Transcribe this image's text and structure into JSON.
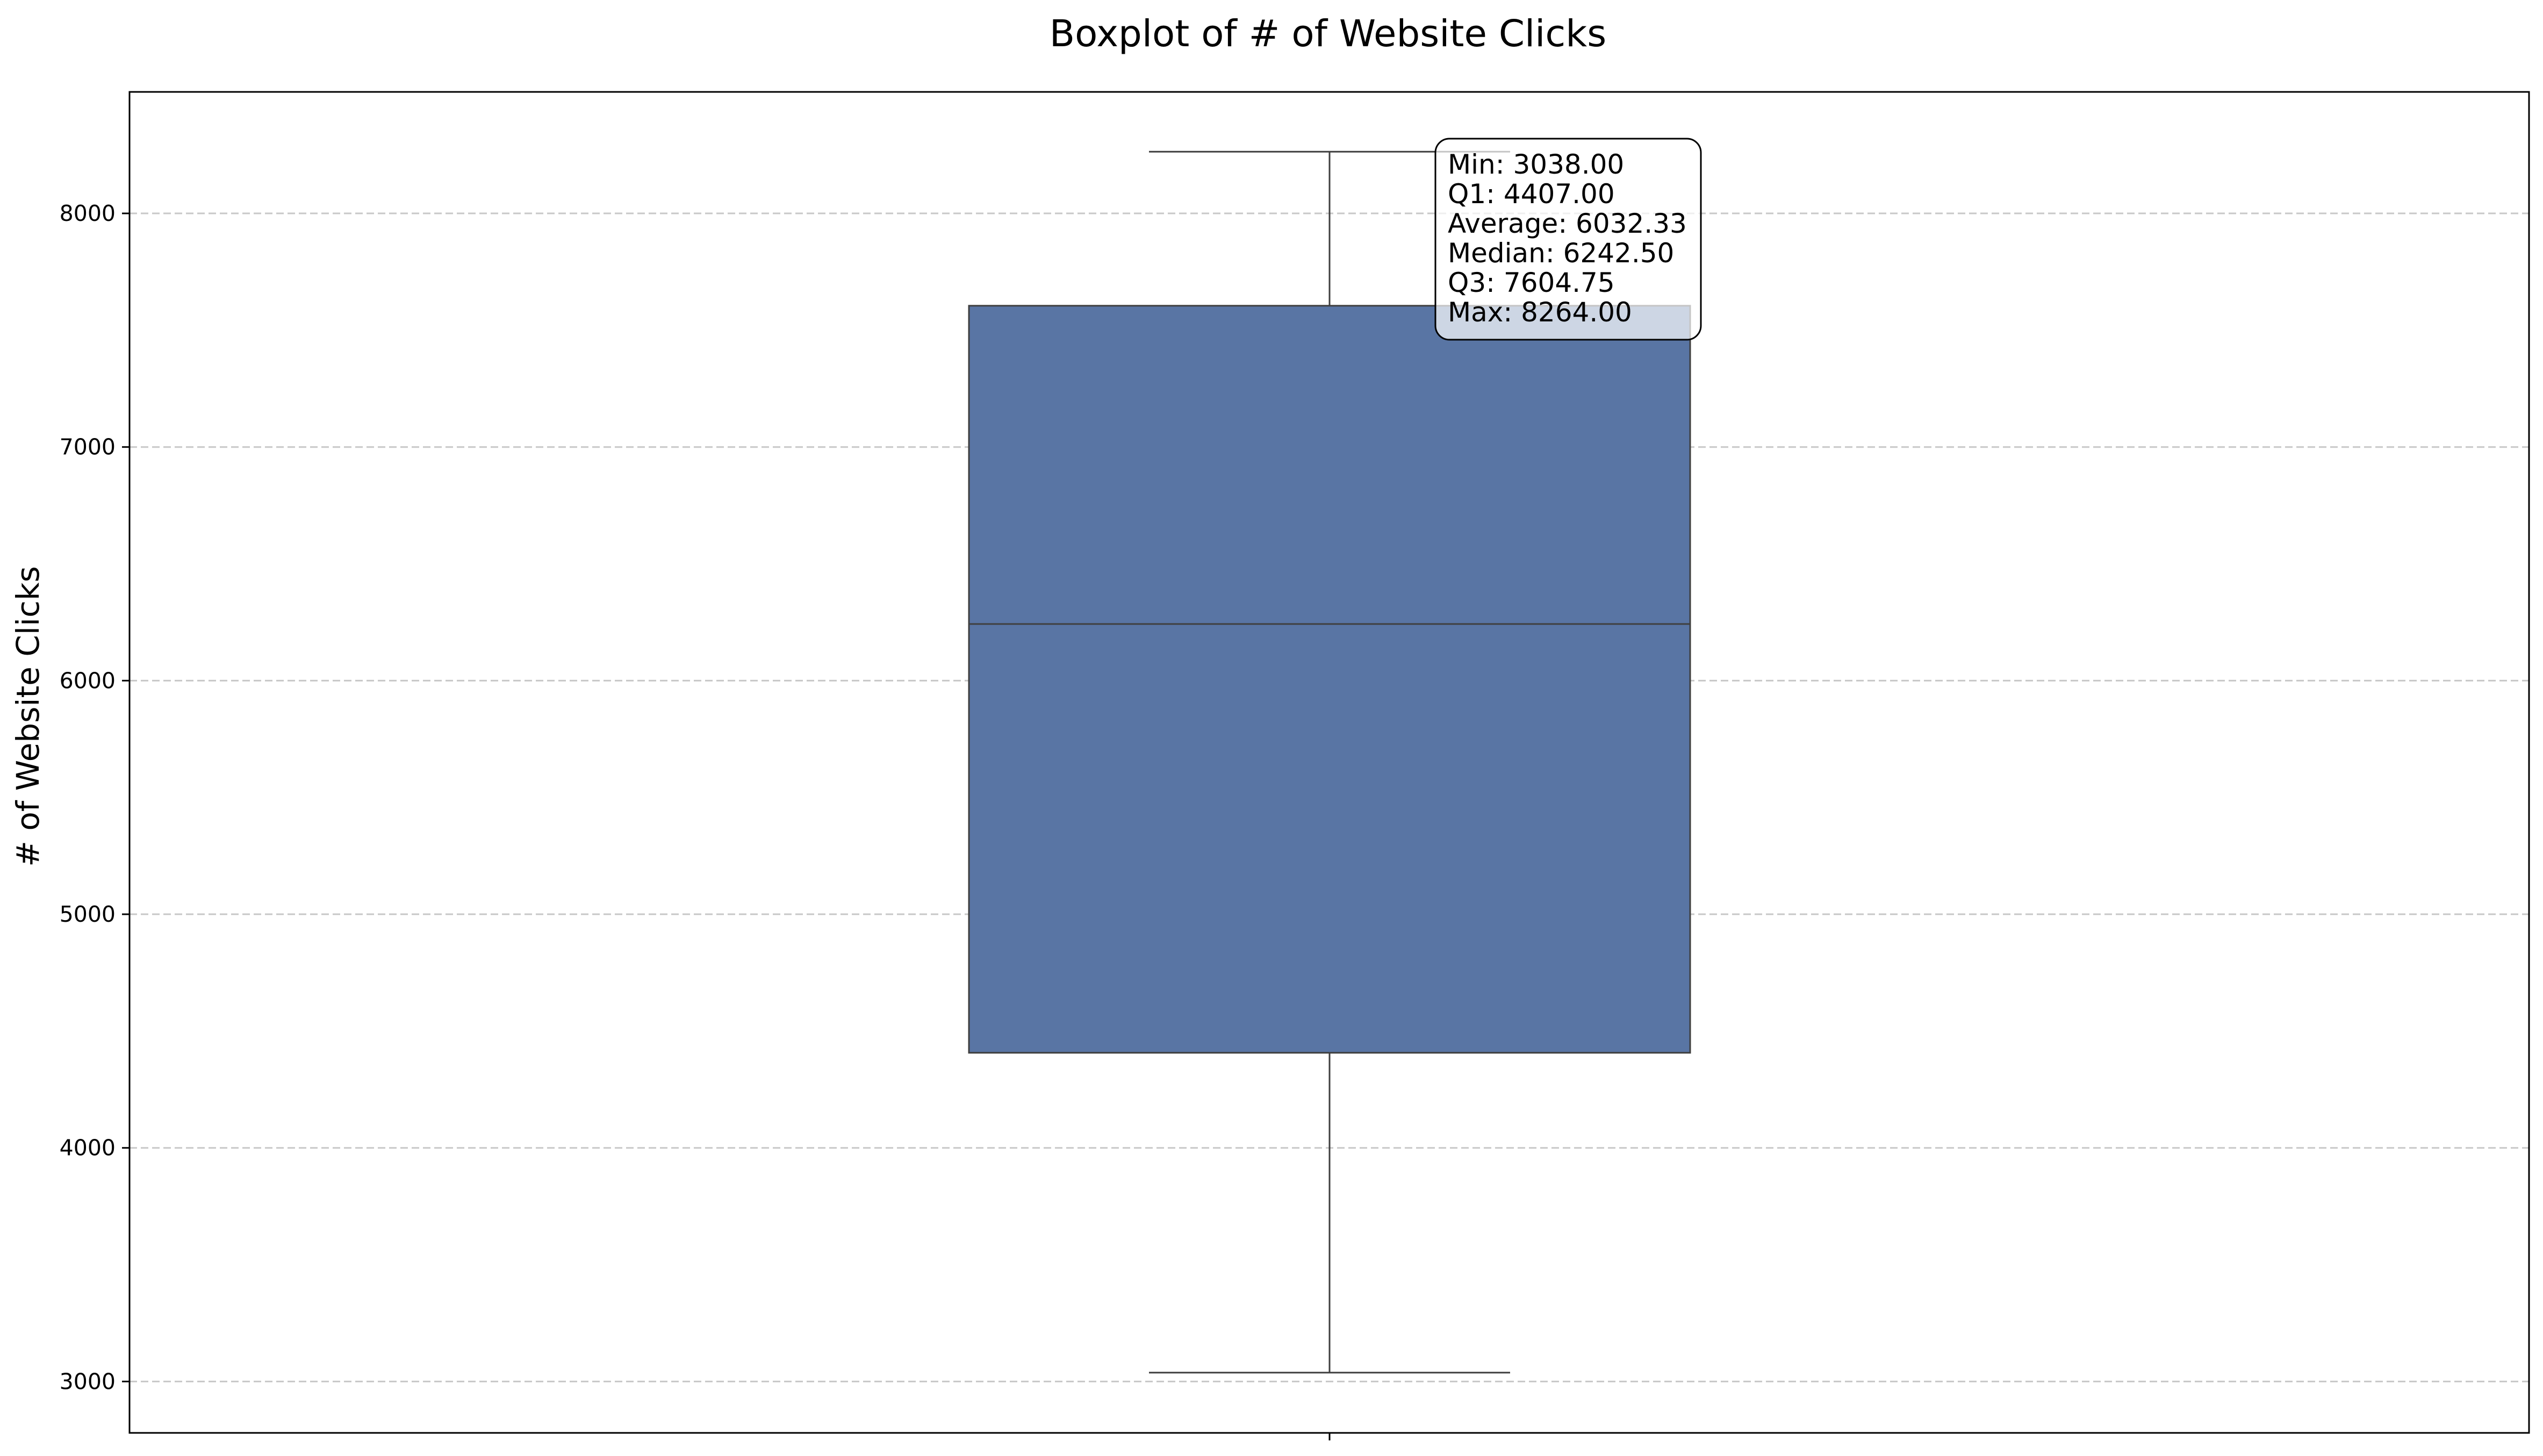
{
  "chart_data": {
    "type": "boxplot",
    "title": "Boxplot of # of Website Clicks",
    "xlabel": "",
    "ylabel": "# of Website Clicks",
    "ylim": [
      2780,
      8520
    ],
    "yticks": [
      3000,
      4000,
      5000,
      6000,
      7000,
      8000
    ],
    "grid": true,
    "box": {
      "min": 3038.0,
      "q1": 4407.0,
      "median": 6242.5,
      "q3": 7604.75,
      "max": 8264.0,
      "average": 6032.33,
      "color": "#5975a4"
    },
    "annotation_lines": [
      "Min: 3038.00",
      "Q1: 4407.00",
      "Average: 6032.33",
      "Median: 6242.50",
      "Q3: 7604.75",
      "Max: 8264.00"
    ]
  }
}
